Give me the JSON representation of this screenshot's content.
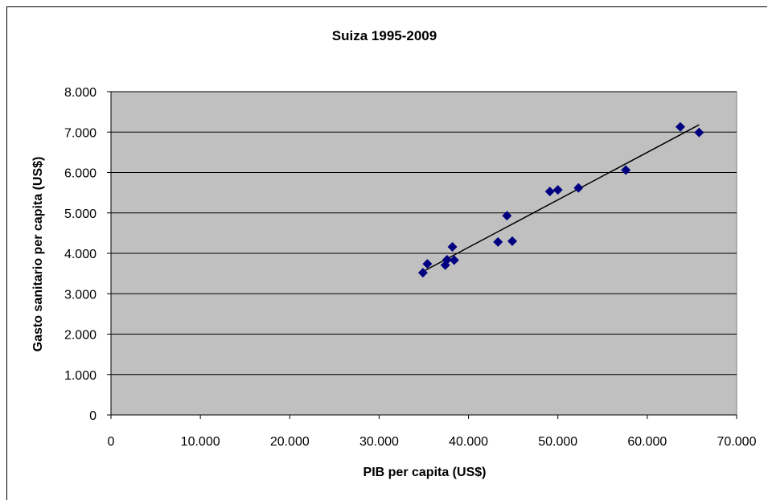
{
  "chart_data": {
    "type": "scatter",
    "title": "Suiza 1995-2009",
    "xlabel": "PIB per capita (US$)",
    "ylabel": "Gasto sanitario per capita (US$)",
    "xlim": [
      0,
      70000
    ],
    "ylim": [
      0,
      8000
    ],
    "xticks": [
      0,
      10000,
      20000,
      30000,
      40000,
      50000,
      60000,
      70000
    ],
    "xtick_labels": [
      "0",
      "10.000",
      "20.000",
      "30.000",
      "40.000",
      "50.000",
      "60.000",
      "70.000"
    ],
    "yticks": [
      0,
      1000,
      2000,
      3000,
      4000,
      5000,
      6000,
      7000,
      8000
    ],
    "ytick_labels": [
      "0",
      "1.000",
      "2.000",
      "3.000",
      "4.000",
      "5.000",
      "6.000",
      "7.000",
      "8.000"
    ],
    "grid": "horizontal",
    "plot_background": "#c0c0c0",
    "marker": "diamond",
    "marker_color": "#000080",
    "series": [
      {
        "points": [
          [
            34900,
            3520
          ],
          [
            35400,
            3740
          ],
          [
            37400,
            3710
          ],
          [
            37600,
            3840
          ],
          [
            38200,
            4160
          ],
          [
            38400,
            3830
          ],
          [
            43300,
            4280
          ],
          [
            44300,
            4930
          ],
          [
            44900,
            4300
          ],
          [
            49100,
            5530
          ],
          [
            50000,
            5570
          ],
          [
            52300,
            5620
          ],
          [
            57600,
            6060
          ],
          [
            63700,
            7130
          ],
          [
            65800,
            6990
          ]
        ]
      }
    ],
    "trendline": {
      "type": "linear",
      "from": [
        35000,
        3560
      ],
      "to": [
        65800,
        7180
      ],
      "color": "#000000"
    }
  }
}
